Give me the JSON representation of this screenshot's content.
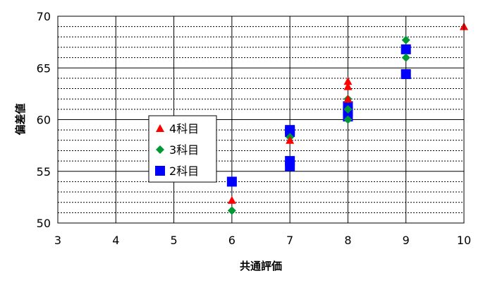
{
  "chart_data": {
    "type": "scatter",
    "xlabel": "共通評価",
    "ylabel": "偏差値",
    "xlim": [
      3,
      10
    ],
    "ylim": [
      50,
      70
    ],
    "x_ticks": [
      3,
      4,
      5,
      6,
      7,
      8,
      9,
      10
    ],
    "y_ticks": [
      50,
      55,
      60,
      65,
      70
    ],
    "grid": {
      "major_y_step": 5,
      "minor_y_step": 1,
      "major_x_step": 1
    },
    "legend_placement": "center-left",
    "series": [
      {
        "name": "4科目",
        "marker": "triangle",
        "color": "#ff0000",
        "points": [
          [
            6,
            52.2
          ],
          [
            7,
            58.0
          ],
          [
            8,
            62.0
          ],
          [
            8,
            63.2
          ],
          [
            8,
            63.7
          ],
          [
            10,
            69.0
          ]
        ]
      },
      {
        "name": "3科目",
        "marker": "diamond",
        "color": "#009933",
        "points": [
          [
            6,
            51.2
          ],
          [
            7,
            58.3
          ],
          [
            8,
            60.0
          ],
          [
            8,
            61.0
          ],
          [
            8,
            62.0
          ],
          [
            9,
            66.0
          ],
          [
            9,
            67.7
          ]
        ]
      },
      {
        "name": "2科目",
        "marker": "square",
        "color": "#0000ff",
        "points": [
          [
            6,
            54.0
          ],
          [
            7,
            55.5
          ],
          [
            7,
            56.0
          ],
          [
            7,
            58.8
          ],
          [
            7,
            59.0
          ],
          [
            8,
            60.3
          ],
          [
            8,
            60.8
          ],
          [
            8,
            61.3
          ],
          [
            9,
            64.4
          ],
          [
            9,
            66.8
          ]
        ]
      }
    ]
  }
}
